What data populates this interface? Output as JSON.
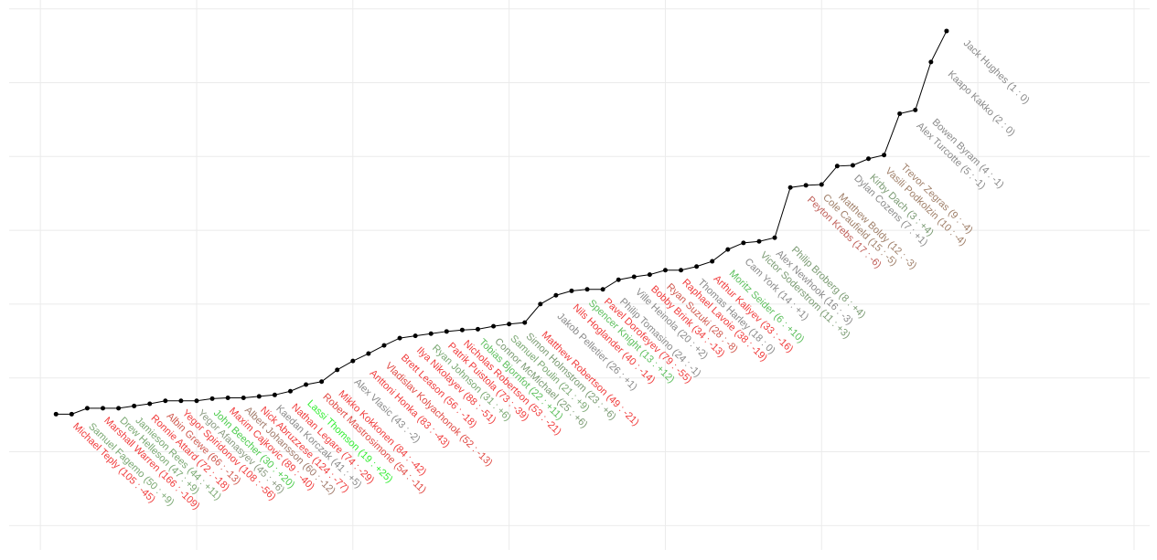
{
  "chart_data": {
    "type": "line",
    "grid": true,
    "x": [
      1,
      2,
      3,
      4,
      5,
      6,
      7,
      8,
      9,
      10,
      11,
      12,
      13,
      14,
      15,
      16,
      17,
      18,
      19,
      20,
      21,
      22,
      23,
      24,
      25,
      26,
      27,
      28,
      29,
      30,
      31,
      32,
      33,
      34,
      35,
      36,
      37,
      38,
      39,
      40,
      41,
      42,
      43,
      44,
      45,
      46,
      47,
      48,
      49,
      50,
      51,
      52,
      53,
      54,
      55,
      56,
      57,
      58
    ],
    "xlim": [
      -2,
      71
    ],
    "xticks": [
      0,
      10,
      20,
      30,
      40,
      50,
      60,
      70
    ],
    "ylim": [
      -0.33,
      7.12
    ],
    "yticks": [
      0,
      1,
      2,
      3,
      4,
      5,
      6,
      7
    ],
    "series": [
      {
        "color": "#000000",
        "values": [
          1.51,
          1.51,
          1.59,
          1.59,
          1.59,
          1.62,
          1.65,
          1.69,
          1.69,
          1.69,
          1.72,
          1.73,
          1.73,
          1.75,
          1.77,
          1.82,
          1.91,
          1.95,
          2.11,
          2.23,
          2.33,
          2.44,
          2.54,
          2.57,
          2.6,
          2.63,
          2.65,
          2.66,
          2.7,
          2.73,
          2.75,
          3.0,
          3.12,
          3.18,
          3.2,
          3.2,
          3.33,
          3.37,
          3.4,
          3.46,
          3.46,
          3.51,
          3.58,
          3.74,
          3.83,
          3.85,
          3.9,
          4.58,
          4.61,
          4.62,
          4.87,
          4.88,
          4.97,
          5.02,
          5.58,
          5.63,
          6.28,
          6.7
        ],
        "labels": [
          "Michael Teply (105 : -45)",
          "Samuel Fagemo (50 : +9)",
          "Marshall Warren (166 : -109)",
          "Drew Helleson (47 : +9)",
          "Jamieson Rees (44 : +11)",
          "Ronnie Attard (72 : -18)",
          "Albin Grewe (66 : -13)",
          "Yegor Spiridonov (108 : -56)",
          "Yegor Afanasyev (45 : +6)",
          "John Beecher (30 : +20)",
          "Maxim Cajkovic (89 : -40)",
          "Albert Johansson (60 : -12)",
          "Nick Abruzzese (124 : -77)",
          "Kaedan Korczak (41 : +5)",
          "Nathan Legare (74 : -29)",
          "Lassi Thomson (19 : +25)",
          "Robert Mastrosimone (54 : -11)",
          "Mikko Kokkonen (84 : -42)",
          "Alex Vlasic (43 : -2)",
          "Anttoni Honka (83 : -43)",
          "Vladislav Kolyachonok (52 : -13)",
          "Brett Leason (56 : -18)",
          "Ilya Nikolayev (88 : -51)",
          "Ryan Johnson (31 : +6)",
          "Patrik Puistola (73 : -39)",
          "Nicholas Robertson (53 : -21)",
          "Tobias Bjornfot (22 : +11)",
          "Connor McMichael (25 : +6)",
          "Samuel Poulin (21 : +9)",
          "Simon Holmstrom (23 : +6)",
          "Matthew Robertson (49 : -21)",
          "Jakob Pelletier (26 : +1)",
          "Nils Hoglander (40 : -14)",
          "Spencer Knight (13 : +12)",
          "Pavel Dorofeyev (79 : -55)",
          "Philip Tomasino (24 : -1)",
          "Ville Heinola (20 : +2)",
          "Bobby Brink (34 : -13)",
          "Ryan Suzuki (28 : -8)",
          "Raphael Lavoie (38 : -19)",
          "Thomas Harley (18 : 0)",
          "Arthur Kaliyev (33 : -16)",
          "Moritz Seider (6 : +10)",
          "Cam York (14 : +1)",
          "Victor Soderstrom (11 : +3)",
          "Alex Newhook (16 : -3)",
          "Philip Broberg (8 : +4)",
          "Peyton Krebs (17 : -6)",
          "Cole Caufield (15 : -5)",
          "Matthew Boldy (12 : -3)",
          "Dylan Cozens (7 : +1)",
          "Kirby Dach (3 : +4)",
          "Vasili Podkolzin (10 : -4)",
          "Trevor Zegras (9 : -4)",
          "Alex Turcotte (5 : -1)",
          "Bowen Byram (4 : -1)",
          "Kaapo Kakko (2 : 0)",
          "Jack Hughes (1 : 0)"
        ],
        "label_colors": [
          "#f03c3c",
          "#7aa872",
          "#f03c3c",
          "#7aa872",
          "#7aa872",
          "#f03c3c",
          "#d05a50",
          "#f03c3c",
          "#8a9a80",
          "#4ccc4c",
          "#f03c3c",
          "#a07a6a",
          "#f03c3c",
          "#8a8a8a",
          "#f03c3c",
          "#33ee33",
          "#e04a44",
          "#f03c3c",
          "#8a8a8a",
          "#f03c3c",
          "#e04a44",
          "#f03c3c",
          "#f03c3c",
          "#7aa872",
          "#f03c3c",
          "#f03c3c",
          "#5cbf5c",
          "#7a9a72",
          "#7aa872",
          "#7a9a72",
          "#f03c3c",
          "#8a8a8a",
          "#f03c3c",
          "#5cbf5c",
          "#f03c3c",
          "#8a8a8a",
          "#8a8a8a",
          "#f03c3c",
          "#d05a50",
          "#f03c3c",
          "#8a8a8a",
          "#f03c3c",
          "#5cbf5c",
          "#8a8a8a",
          "#7a9a72",
          "#8a8a8a",
          "#7a9a72",
          "#c0605a",
          "#a0806a",
          "#a0806a",
          "#8a8a8a",
          "#7a9a72",
          "#a0806a",
          "#a0806a",
          "#8a8a8a",
          "#8a8a8a",
          "#8a8a8a",
          "#8a8a8a"
        ]
      }
    ]
  }
}
